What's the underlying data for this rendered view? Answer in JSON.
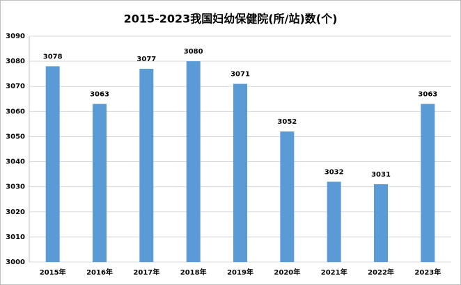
{
  "chart_data": {
    "type": "bar",
    "title": "2015-2023我国妇幼保健院(所/站)数(个)",
    "categories": [
      "2015年",
      "2016年",
      "2017年",
      "2018年",
      "2019年",
      "2020年",
      "2021年",
      "2022年",
      "2023年"
    ],
    "values": [
      3078,
      3063,
      3077,
      3080,
      3071,
      3052,
      3032,
      3031,
      3063
    ],
    "color": "#5b9bd5",
    "ylim": [
      3000,
      3090
    ],
    "yticks": [
      3000,
      3010,
      3020,
      3030,
      3040,
      3050,
      3060,
      3070,
      3080,
      3090
    ],
    "grid": true
  }
}
